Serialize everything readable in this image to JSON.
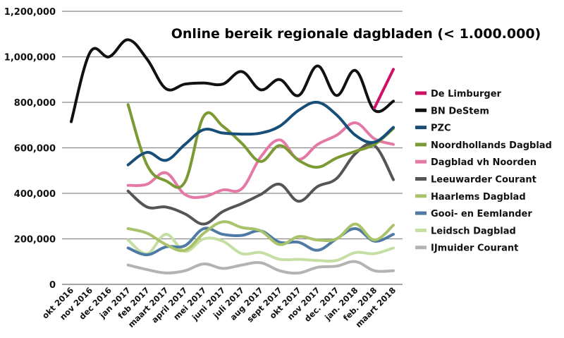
{
  "chart_data": {
    "type": "line",
    "title": "Online bereik regionale dagbladen (< 1.000.000)",
    "xlabel": "",
    "ylabel": "",
    "ylim": [
      0,
      1200000
    ],
    "yticks": [
      0,
      200000,
      400000,
      600000,
      800000,
      1000000,
      1200000
    ],
    "ytick_labels": [
      "0",
      "200,000",
      "400,000",
      "600,000",
      "800,000",
      "1,000,000",
      "1,200,000"
    ],
    "grid": "horizontal",
    "legend_position": "right",
    "categories": [
      "okt 2016",
      "nov 2016",
      "dec 2016",
      "jan 2017",
      "feb 2017",
      "maart 2017",
      "april 2017",
      "mei 2017",
      "juni 2017",
      "juli 2017",
      "aug 2017",
      "sept 2017",
      "okt 2017",
      "nov 2017",
      "dec. 2017",
      "jan. 2018",
      "feb. 2018",
      "maart 2018"
    ],
    "series": [
      {
        "name": "De Limburger",
        "color": "#cc1166",
        "values": [
          null,
          null,
          null,
          null,
          null,
          null,
          null,
          null,
          null,
          null,
          null,
          null,
          null,
          null,
          null,
          null,
          775000,
          945000
        ]
      },
      {
        "name": "BN DeStem",
        "color": "#111111",
        "values": [
          715000,
          1020000,
          1000000,
          1075000,
          990000,
          860000,
          880000,
          885000,
          880000,
          935000,
          855000,
          900000,
          830000,
          960000,
          830000,
          940000,
          765000,
          805000
        ]
      },
      {
        "name": "PZC",
        "color": "#174f78",
        "values": [
          null,
          null,
          null,
          525000,
          580000,
          545000,
          615000,
          680000,
          665000,
          660000,
          665000,
          695000,
          765000,
          800000,
          745000,
          655000,
          625000,
          690000
        ]
      },
      {
        "name": "Noordhollands Dagblad",
        "color": "#7c9a34",
        "values": [
          null,
          null,
          null,
          790000,
          525000,
          455000,
          450000,
          740000,
          695000,
          620000,
          540000,
          610000,
          545000,
          515000,
          555000,
          585000,
          615000,
          685000
        ]
      },
      {
        "name": "Dagblad vh Noorden",
        "color": "#e579a6",
        "values": [
          null,
          null,
          null,
          435000,
          440000,
          490000,
          395000,
          385000,
          415000,
          420000,
          560000,
          635000,
          550000,
          615000,
          655000,
          710000,
          640000,
          615000
        ]
      },
      {
        "name": "Leeuwarder Courant",
        "color": "#555555",
        "values": [
          null,
          null,
          null,
          410000,
          340000,
          340000,
          310000,
          265000,
          320000,
          355000,
          395000,
          440000,
          365000,
          430000,
          465000,
          575000,
          610000,
          460000
        ]
      },
      {
        "name": "Haarlems Dagblad",
        "color": "#a8c36a",
        "values": [
          null,
          null,
          null,
          245000,
          225000,
          175000,
          150000,
          225000,
          275000,
          250000,
          235000,
          175000,
          210000,
          195000,
          200000,
          265000,
          195000,
          260000
        ]
      },
      {
        "name": "Gooi- en Eemlander",
        "color": "#4f7aa6",
        "values": [
          null,
          null,
          null,
          160000,
          130000,
          165000,
          170000,
          245000,
          220000,
          215000,
          235000,
          185000,
          185000,
          150000,
          200000,
          245000,
          190000,
          220000
        ]
      },
      {
        "name": "Leidsch Dagblad",
        "color": "#c5dea3",
        "values": [
          null,
          null,
          null,
          195000,
          135000,
          220000,
          145000,
          200000,
          190000,
          135000,
          140000,
          110000,
          110000,
          105000,
          105000,
          140000,
          135000,
          160000
        ]
      },
      {
        "name": "IJmuider Courant",
        "color": "#b3b3b3",
        "values": [
          null,
          null,
          null,
          85000,
          65000,
          50000,
          60000,
          90000,
          70000,
          85000,
          95000,
          60000,
          50000,
          75000,
          80000,
          100000,
          60000,
          60000
        ]
      }
    ]
  }
}
